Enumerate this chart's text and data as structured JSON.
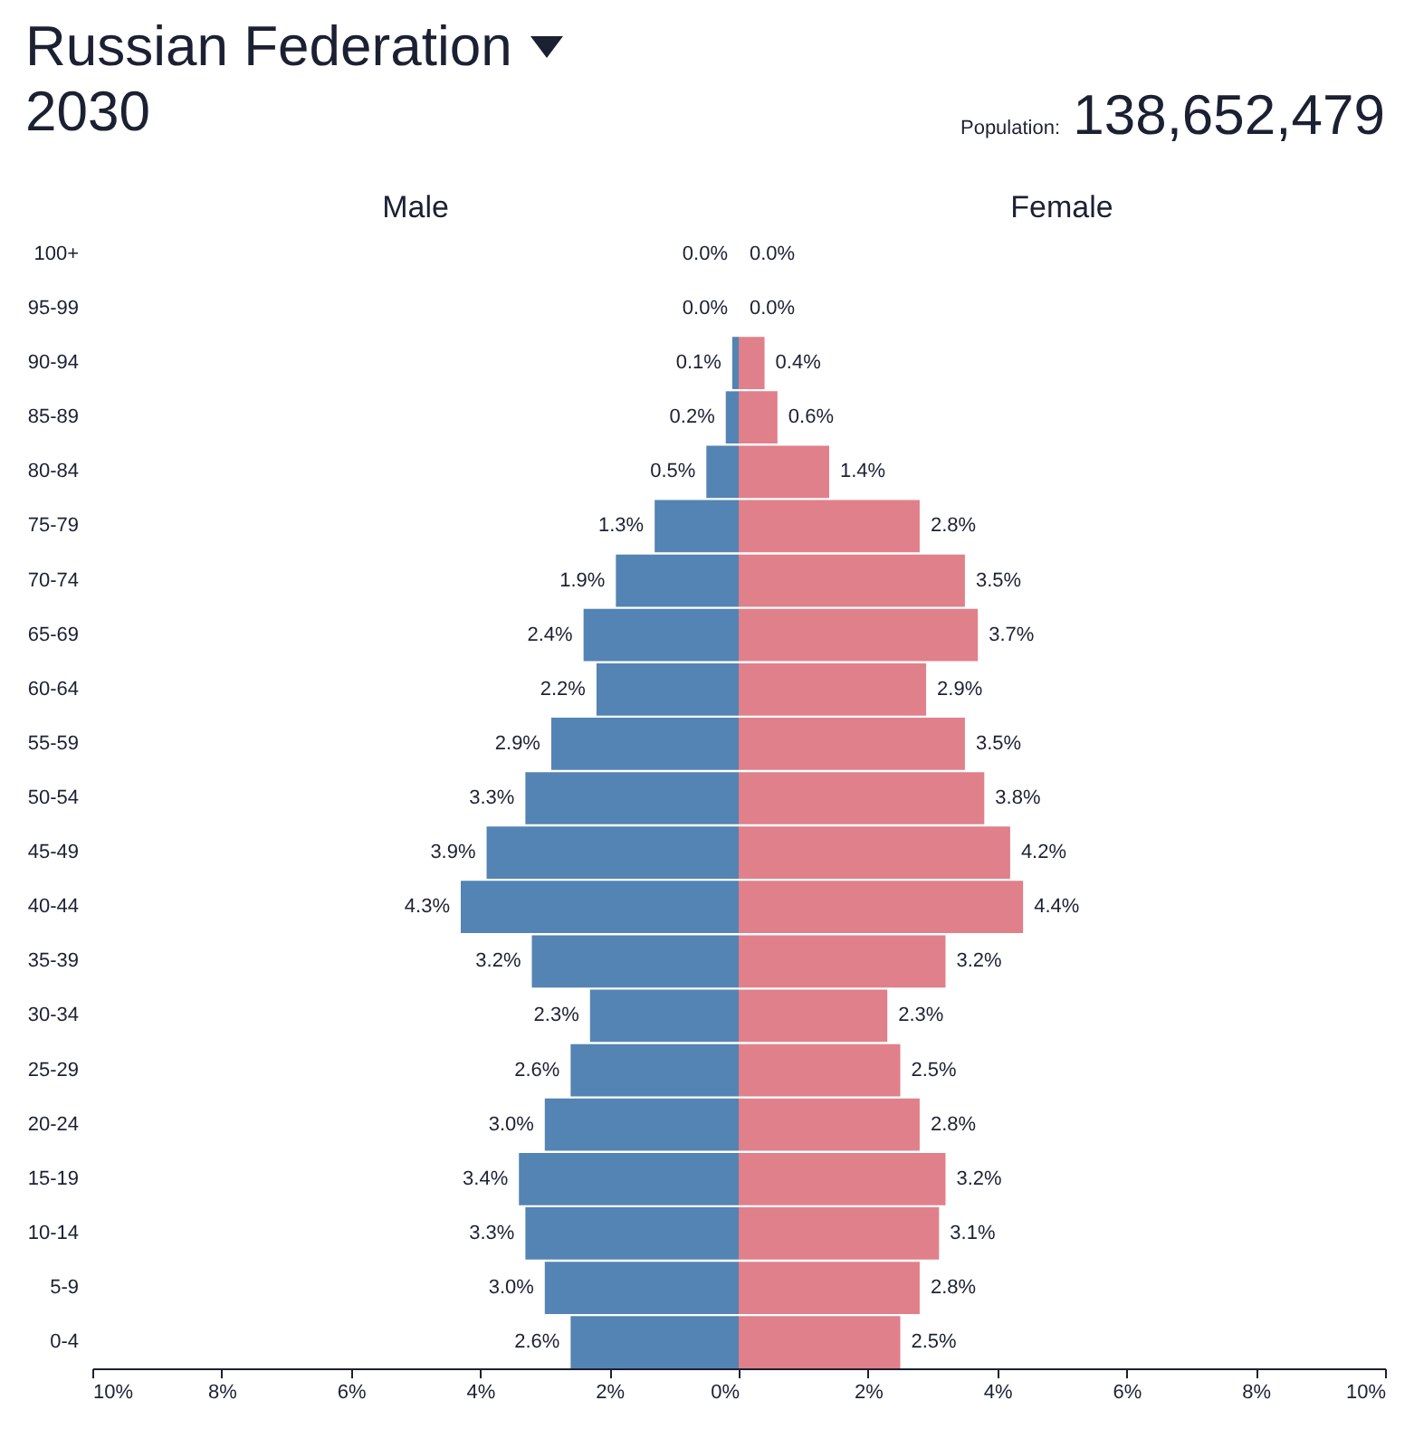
{
  "chart_data": [
    {
      "type": "other",
      "title": "Russian Federation",
      "subtitle": "2030",
      "annotations": [
        "Population: 138,652,479"
      ]
    },
    {
      "type": "bar",
      "orientation": "horizontal",
      "title": "Male",
      "categories": [
        "100+",
        "95-99",
        "90-94",
        "85-89",
        "80-84",
        "75-79",
        "70-74",
        "65-69",
        "60-64",
        "55-59",
        "50-54",
        "45-49",
        "40-44",
        "35-39",
        "30-34",
        "25-29",
        "20-24",
        "15-19",
        "10-14",
        "5-9",
        "0-4"
      ],
      "series": [
        {
          "color": "#5384b3",
          "values": [
            0.0,
            0.0,
            0.1,
            0.2,
            0.5,
            1.3,
            1.9,
            2.4,
            2.2,
            2.9,
            3.3,
            3.9,
            4.3,
            3.2,
            2.3,
            2.6,
            3.0,
            3.4,
            3.3,
            3.0,
            2.6
          ],
          "value_labels": [
            "0.0%",
            "0.0%",
            "0.1%",
            "0.2%",
            "0.5%",
            "1.3%",
            "1.9%",
            "2.4%",
            "2.2%",
            "2.9%",
            "3.3%",
            "3.9%",
            "4.3%",
            "3.2%",
            "2.3%",
            "2.6%",
            "3.0%",
            "3.4%",
            "3.3%",
            "3.0%",
            "2.6%"
          ]
        }
      ],
      "xlim": [
        10,
        0
      ],
      "xticks": [
        {
          "value": 10,
          "label": "10%"
        },
        {
          "value": 8,
          "label": "8%"
        },
        {
          "value": 6,
          "label": "6%"
        },
        {
          "value": 4,
          "label": "4%"
        },
        {
          "value": 2,
          "label": "2%"
        },
        {
          "value": 0,
          "label": "0%"
        }
      ],
      "grid": false
    },
    {
      "type": "bar",
      "orientation": "horizontal",
      "title": "Female",
      "categories": [
        null,
        null,
        null,
        null,
        null,
        null,
        null,
        null,
        null,
        null,
        null,
        null,
        null,
        null,
        null,
        null,
        null,
        null,
        null,
        null,
        null
      ],
      "series": [
        {
          "color": "#e0808a",
          "values": [
            0.0,
            0.0,
            0.4,
            0.6,
            1.4,
            2.8,
            3.5,
            3.7,
            2.9,
            3.5,
            3.8,
            4.2,
            4.4,
            3.2,
            2.3,
            2.5,
            2.8,
            3.2,
            3.1,
            2.8,
            2.5
          ],
          "value_labels": [
            "0.0%",
            "0.0%",
            "0.4%",
            "0.6%",
            "1.4%",
            "2.8%",
            "3.5%",
            "3.7%",
            "2.9%",
            "3.5%",
            "3.8%",
            "4.2%",
            "4.4%",
            "3.2%",
            "2.3%",
            "2.5%",
            "2.8%",
            "3.2%",
            "3.1%",
            "2.8%",
            "2.5%"
          ]
        }
      ],
      "xlim": [
        0,
        10
      ],
      "xticks": [
        {
          "value": 0,
          "label": null
        },
        {
          "value": 2,
          "label": "2%"
        },
        {
          "value": 4,
          "label": "4%"
        },
        {
          "value": 6,
          "label": "6%"
        },
        {
          "value": 8,
          "label": "8%"
        },
        {
          "value": 10,
          "label": "10%"
        }
      ],
      "tick_labels": "x",
      "grid": false
    }
  ]
}
